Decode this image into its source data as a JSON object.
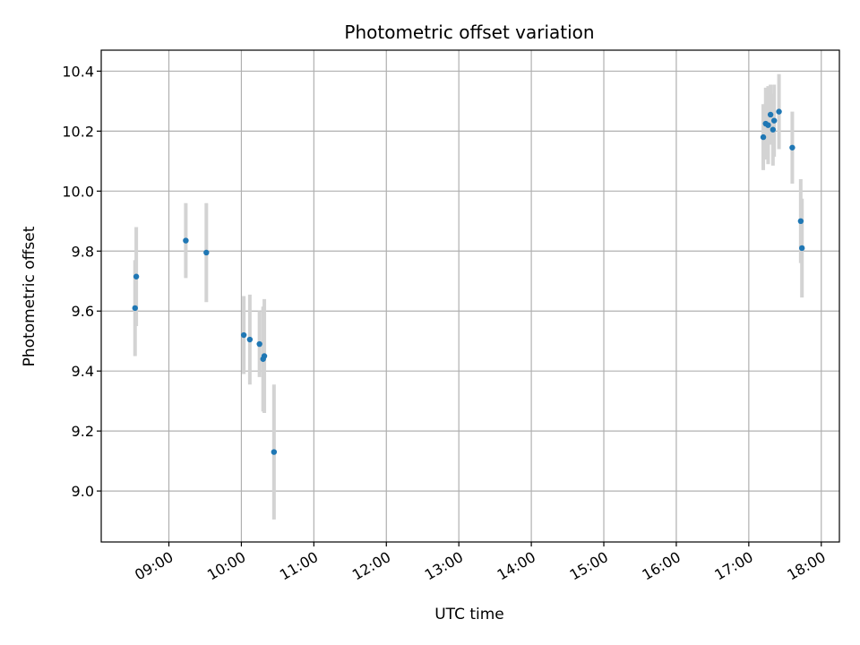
{
  "chart_data": {
    "type": "scatter",
    "title": "Photometric offset variation",
    "xlabel": "UTC time",
    "ylabel": "Photometric offset",
    "x_ticks": [
      "09:00",
      "10:00",
      "11:00",
      "12:00",
      "13:00",
      "14:00",
      "15:00",
      "16:00",
      "17:00",
      "18:00"
    ],
    "y_ticks": [
      "9.0",
      "9.2",
      "9.4",
      "9.6",
      "9.8",
      "10.0",
      "10.2",
      "10.4"
    ],
    "xlim": [
      "08:04",
      "18:15"
    ],
    "ylim": [
      8.83,
      10.47
    ],
    "grid": true,
    "marker_color": "#1f77b4",
    "errorbar_color": "#d3d3d3",
    "points": [
      {
        "t": "08:32",
        "y": 9.61,
        "err": 0.16
      },
      {
        "t": "08:33",
        "y": 9.715,
        "err": 0.165
      },
      {
        "t": "09:14",
        "y": 9.835,
        "err": 0.125
      },
      {
        "t": "09:31",
        "y": 9.795,
        "err": 0.165
      },
      {
        "t": "10:02",
        "y": 9.52,
        "err": 0.13
      },
      {
        "t": "10:07",
        "y": 9.505,
        "err": 0.15
      },
      {
        "t": "10:15",
        "y": 9.49,
        "err": 0.11
      },
      {
        "t": "10:18",
        "y": 9.44,
        "err": 0.175
      },
      {
        "t": "10:19",
        "y": 9.45,
        "err": 0.19
      },
      {
        "t": "10:27",
        "y": 9.13,
        "err": 0.225
      },
      {
        "t": "17:12",
        "y": 10.18,
        "err": 0.11
      },
      {
        "t": "17:14",
        "y": 10.225,
        "err": 0.12
      },
      {
        "t": "17:16",
        "y": 10.22,
        "err": 0.13
      },
      {
        "t": "17:18",
        "y": 10.255,
        "err": 0.1
      },
      {
        "t": "17:20",
        "y": 10.205,
        "err": 0.12
      },
      {
        "t": "17:21",
        "y": 10.235,
        "err": 0.12
      },
      {
        "t": "17:25",
        "y": 10.265,
        "err": 0.125
      },
      {
        "t": "17:36",
        "y": 10.145,
        "err": 0.12
      },
      {
        "t": "17:43",
        "y": 9.9,
        "err": 0.14
      },
      {
        "t": "17:44",
        "y": 9.81,
        "err": 0.165
      }
    ]
  }
}
